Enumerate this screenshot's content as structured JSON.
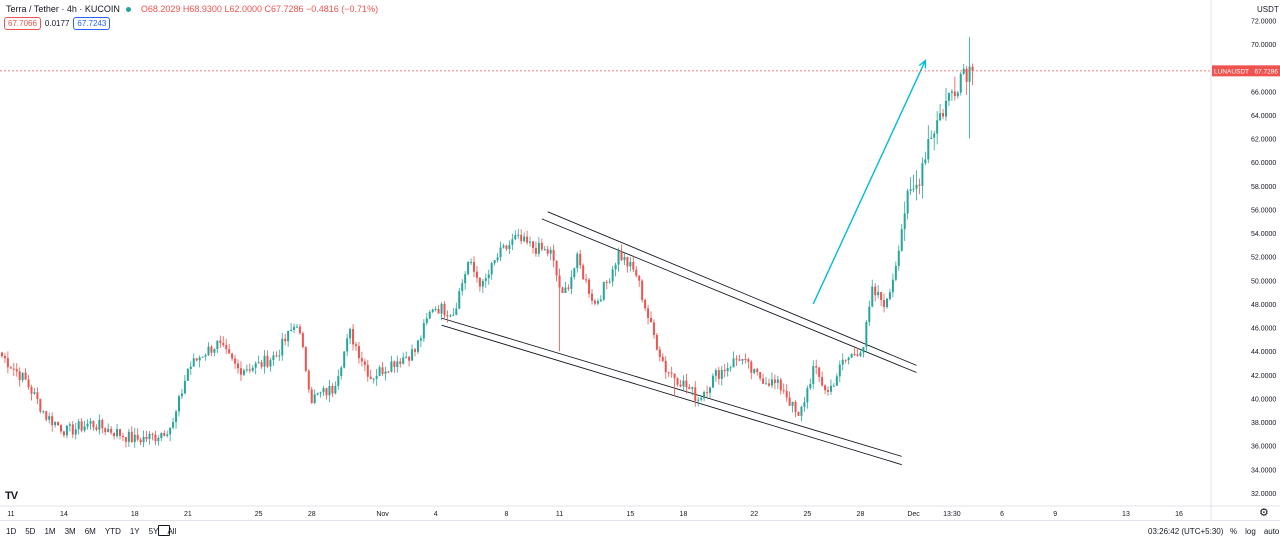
{
  "header": {
    "symbol": "Terra / Tether · 4h · KUCOIN",
    "ohlc": "O68.2029 H68.9300 L62.0000 C67.7286 −0.4816 (−0.71%)",
    "bid": "67.7066",
    "spread": "0.0177",
    "ask": "67.7243"
  },
  "price_axis_unit": "USDT",
  "last_price_label": {
    "symbol": "LUNAUSDT",
    "price": "67.7286"
  },
  "ranges": [
    "1D",
    "5D",
    "1M",
    "3M",
    "6M",
    "YTD",
    "1Y",
    "5Y",
    "All"
  ],
  "clock": "03:26:42 (UTC+5:30)",
  "options": [
    "%",
    "log",
    "auto"
  ],
  "tv_logo": "TV",
  "gear_icon": "⚙",
  "colors": {
    "up": "#26a69a",
    "down": "#ef5350",
    "arrow": "#00bcd4",
    "line": "#131722",
    "last": "#ef5350"
  },
  "chart_data": {
    "type": "candlestick",
    "title": "Terra / Tether · 4h · KUCOIN",
    "ylabel": "USDT",
    "ylim": [
      31.2,
      73.2
    ],
    "y_ticks": [
      "72.0000",
      "70.0000",
      "68.0000",
      "66.0000",
      "64.0000",
      "62.0000",
      "60.0000",
      "58.0000",
      "56.0000",
      "54.0000",
      "52.0000",
      "50.0000",
      "48.0000",
      "46.0000",
      "44.0000",
      "42.0000",
      "40.0000",
      "38.0000",
      "36.0000",
      "34.0000",
      "32.0000"
    ],
    "x_ticks": [
      {
        "label": "11",
        "i": 3
      },
      {
        "label": "14",
        "i": 21
      },
      {
        "label": "18",
        "i": 45
      },
      {
        "label": "21",
        "i": 63
      },
      {
        "label": "25",
        "i": 87
      },
      {
        "label": "28",
        "i": 105
      },
      {
        "label": "Nov",
        "i": 129
      },
      {
        "label": "4",
        "i": 147
      },
      {
        "label": "8",
        "i": 171
      },
      {
        "label": "11",
        "i": 189
      },
      {
        "label": "15",
        "i": 213
      },
      {
        "label": "18",
        "i": 231
      },
      {
        "label": "22",
        "i": 255
      },
      {
        "label": "25",
        "i": 273
      },
      {
        "label": "28",
        "i": 291
      },
      {
        "label": "Dec",
        "i": 309
      },
      {
        "label": "13:30",
        "i": 322
      },
      {
        "label": "6",
        "i": 339
      },
      {
        "label": "9",
        "i": 357
      },
      {
        "label": "13",
        "i": 381
      },
      {
        "label": "16",
        "i": 399
      }
    ],
    "candle_count": 330,
    "anchors": [
      [
        0,
        43.6
      ],
      [
        8,
        41.5
      ],
      [
        15,
        38.5
      ],
      [
        22,
        37.2
      ],
      [
        30,
        37.9
      ],
      [
        38,
        37.2
      ],
      [
        45,
        36.5
      ],
      [
        52,
        36.8
      ],
      [
        58,
        37.8
      ],
      [
        63,
        42.5
      ],
      [
        68,
        43.8
      ],
      [
        73,
        44.6
      ],
      [
        80,
        42.5
      ],
      [
        87,
        42.8
      ],
      [
        93,
        43.7
      ],
      [
        100,
        46.5
      ],
      [
        105,
        40.0
      ],
      [
        112,
        40.8
      ],
      [
        118,
        45.5
      ],
      [
        125,
        41.8
      ],
      [
        132,
        43.0
      ],
      [
        140,
        44.0
      ],
      [
        146,
        47.8
      ],
      [
        153,
        47.3
      ],
      [
        158,
        51.5
      ],
      [
        163,
        49.5
      ],
      [
        168,
        52.0
      ],
      [
        174,
        53.5
      ],
      [
        180,
        52.8
      ],
      [
        186,
        52.3
      ],
      [
        190,
        48.5
      ],
      [
        195,
        51.7
      ],
      [
        201,
        48.0
      ],
      [
        205,
        49.8
      ],
      [
        209,
        52.3
      ],
      [
        215,
        50.5
      ],
      [
        220,
        46.0
      ],
      [
        225,
        42.5
      ],
      [
        230,
        41.5
      ],
      [
        236,
        40.0
      ],
      [
        242,
        42.0
      ],
      [
        250,
        43.5
      ],
      [
        255,
        42.0
      ],
      [
        260,
        41.5
      ],
      [
        265,
        40.8
      ],
      [
        270,
        38.2
      ],
      [
        275,
        42.5
      ],
      [
        280,
        40.5
      ],
      [
        285,
        43.0
      ],
      [
        292,
        44.5
      ],
      [
        295,
        49.0
      ],
      [
        300,
        48.0
      ],
      [
        303,
        51.5
      ],
      [
        306,
        56.0
      ],
      [
        310,
        58.0
      ],
      [
        314,
        62.0
      ],
      [
        318,
        64.0
      ],
      [
        322,
        66.0
      ],
      [
        326,
        68.0
      ],
      [
        329,
        67.7286
      ]
    ],
    "last_price": 67.7286,
    "drawings": {
      "channel_upper_1": {
        "from": {
          "i": 185,
          "p": 55.8
        },
        "to": {
          "i": 310,
          "p": 42.8
        }
      },
      "channel_upper_2": {
        "from": {
          "i": 183,
          "p": 55.2
        },
        "to": {
          "i": 310,
          "p": 42.2
        }
      },
      "channel_lower_1": {
        "from": {
          "i": 149,
          "p": 46.8
        },
        "to": {
          "i": 305,
          "p": 35.1
        }
      },
      "channel_lower_2": {
        "from": {
          "i": 149,
          "p": 46.2
        },
        "to": {
          "i": 305,
          "p": 34.4
        }
      },
      "breakout_arrow": {
        "from": {
          "i": 275,
          "p": 48.0
        },
        "to": {
          "i": 313,
          "p": 68.6
        }
      }
    }
  }
}
